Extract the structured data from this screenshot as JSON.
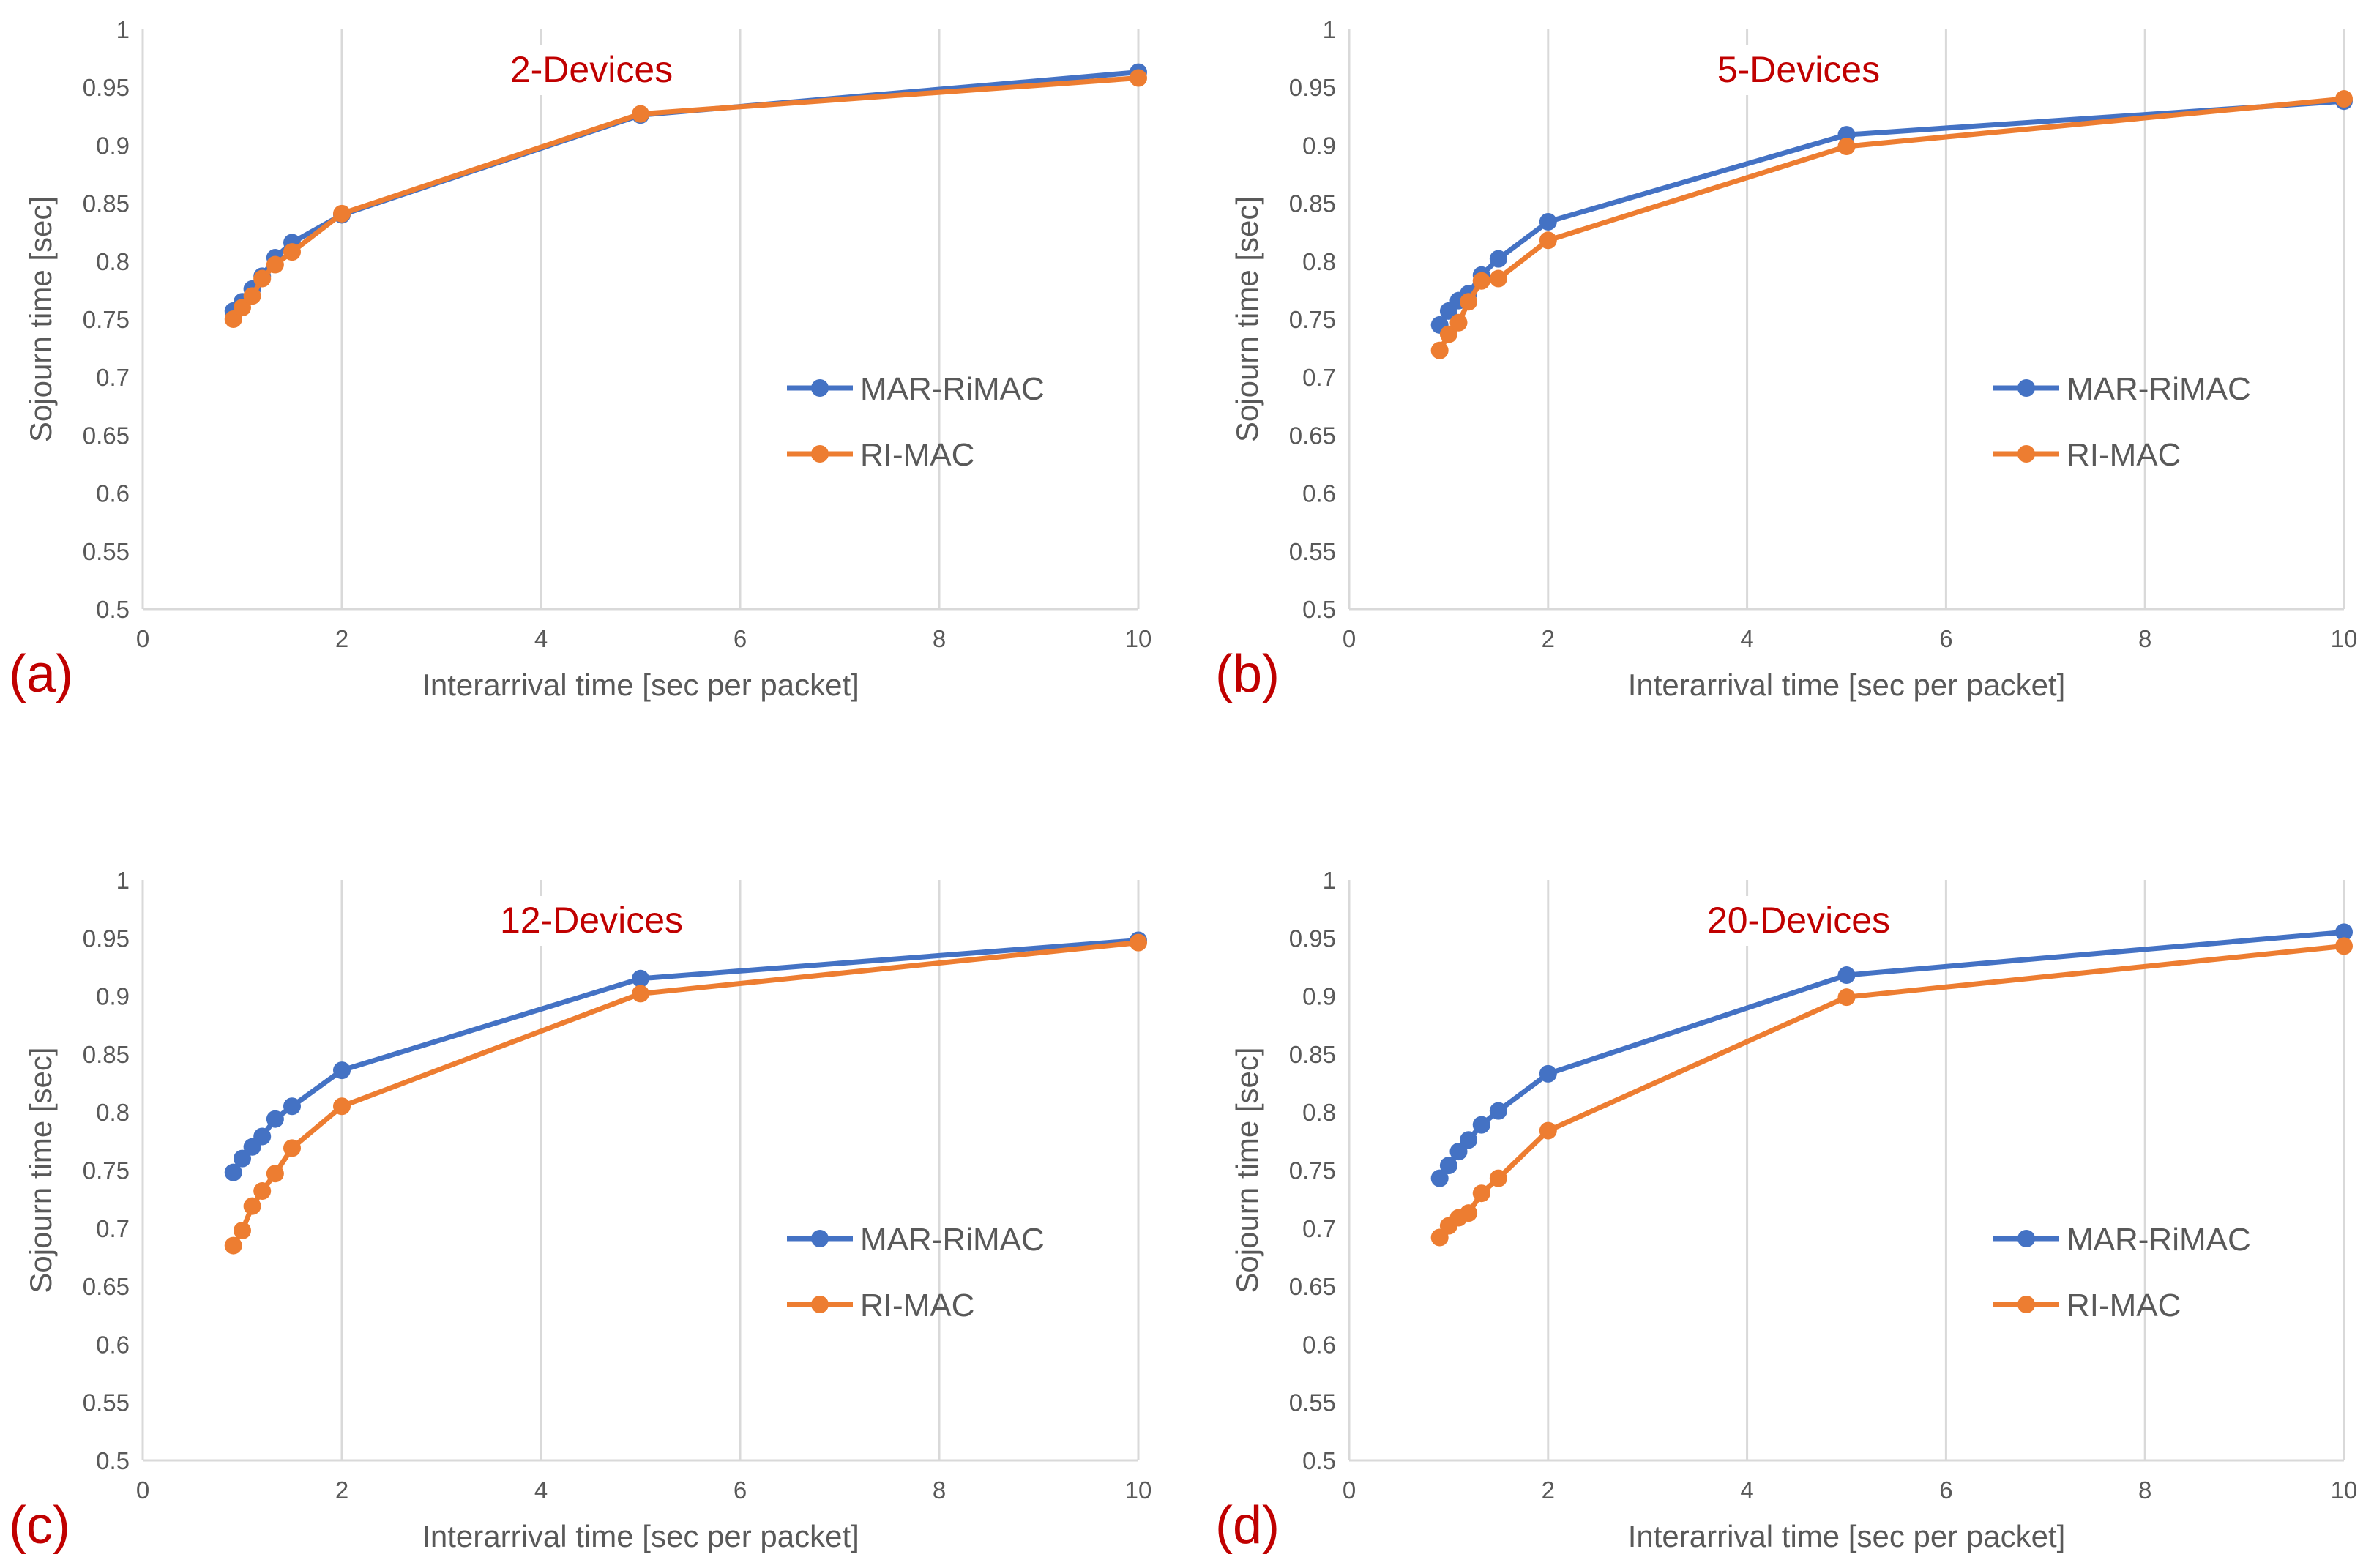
{
  "colors": {
    "mar_rimac": "#4472c4",
    "ri_mac": "#ed7d31",
    "grid": "#d9d9d9",
    "axis_text": "#595959",
    "title_red": "#c00000"
  },
  "chart_data": [
    {
      "type": "line",
      "panel": "(a)",
      "title": "2-Devices",
      "xlabel": "Interarrival time [sec per packet]",
      "ylabel": "Sojourn time [sec]",
      "xlim": [
        0,
        10
      ],
      "ylim": [
        0.5,
        1
      ],
      "xticks": [
        "0",
        "2",
        "4",
        "6",
        "8",
        "10"
      ],
      "yticks": [
        "0.5",
        "0.55",
        "0.6",
        "0.65",
        "0.7",
        "0.75",
        "0.8",
        "0.85",
        "0.9",
        "0.95",
        "1"
      ],
      "grid": "vertical",
      "legend_position": "right",
      "x": [
        0.91,
        1.0,
        1.1,
        1.2,
        1.33,
        1.5,
        2,
        5,
        10
      ],
      "series": [
        {
          "name": "MAR-RiMAC",
          "values": [
            0.757,
            0.765,
            0.776,
            0.787,
            0.803,
            0.816,
            0.84,
            0.926,
            0.963
          ]
        },
        {
          "name": "RI-MAC",
          "values": [
            0.75,
            0.76,
            0.77,
            0.785,
            0.797,
            0.808,
            0.841,
            0.927,
            0.958
          ]
        }
      ]
    },
    {
      "type": "line",
      "panel": "(b)",
      "title": "5-Devices",
      "xlabel": "Interarrival time [sec per packet]",
      "ylabel": "Sojourn time [sec]",
      "xlim": [
        0,
        10
      ],
      "ylim": [
        0.5,
        1
      ],
      "xticks": [
        "0",
        "2",
        "4",
        "6",
        "8",
        "10"
      ],
      "yticks": [
        "0.5",
        "0.55",
        "0.6",
        "0.65",
        "0.7",
        "0.75",
        "0.8",
        "0.85",
        "0.9",
        "0.95",
        "1"
      ],
      "grid": "vertical",
      "legend_position": "right",
      "x": [
        0.91,
        1.0,
        1.1,
        1.2,
        1.33,
        1.5,
        2,
        5,
        10
      ],
      "series": [
        {
          "name": "MAR-RiMAC",
          "values": [
            0.745,
            0.757,
            0.766,
            0.772,
            0.788,
            0.802,
            0.834,
            0.909,
            0.938
          ]
        },
        {
          "name": "RI-MAC",
          "values": [
            0.723,
            0.737,
            0.747,
            0.765,
            0.783,
            0.785,
            0.818,
            0.899,
            0.94
          ]
        }
      ]
    },
    {
      "type": "line",
      "panel": "(c)",
      "title": "12-Devices",
      "xlabel": "Interarrival time [sec per packet]",
      "ylabel": "Sojourn time [sec]",
      "xlim": [
        0,
        10
      ],
      "ylim": [
        0.5,
        1
      ],
      "xticks": [
        "0",
        "2",
        "4",
        "6",
        "8",
        "10"
      ],
      "yticks": [
        "0.5",
        "0.55",
        "0.6",
        "0.65",
        "0.7",
        "0.75",
        "0.8",
        "0.85",
        "0.9",
        "0.95",
        "1"
      ],
      "grid": "vertical",
      "legend_position": "right",
      "x": [
        0.91,
        1.0,
        1.1,
        1.2,
        1.33,
        1.5,
        2,
        5,
        10
      ],
      "series": [
        {
          "name": "MAR-RiMAC",
          "values": [
            0.748,
            0.76,
            0.77,
            0.779,
            0.794,
            0.805,
            0.836,
            0.915,
            0.948
          ]
        },
        {
          "name": "RI-MAC",
          "values": [
            0.685,
            0.698,
            0.719,
            0.732,
            0.747,
            0.769,
            0.805,
            0.902,
            0.946
          ]
        }
      ]
    },
    {
      "type": "line",
      "panel": "(d)",
      "title": "20-Devices",
      "xlabel": "Interarrival time [sec per packet]",
      "ylabel": "Sojourn time [sec]",
      "xlim": [
        0,
        10
      ],
      "ylim": [
        0.5,
        1
      ],
      "xticks": [
        "0",
        "2",
        "4",
        "6",
        "8",
        "10"
      ],
      "yticks": [
        "0.5",
        "0.55",
        "0.6",
        "0.65",
        "0.7",
        "0.75",
        "0.8",
        "0.85",
        "0.9",
        "0.95",
        "1"
      ],
      "grid": "vertical",
      "legend_position": "right",
      "x": [
        0.91,
        1.0,
        1.1,
        1.2,
        1.33,
        1.5,
        2,
        5,
        10
      ],
      "series": [
        {
          "name": "MAR-RiMAC",
          "values": [
            0.743,
            0.754,
            0.766,
            0.776,
            0.789,
            0.801,
            0.833,
            0.918,
            0.955
          ]
        },
        {
          "name": "RI-MAC",
          "values": [
            0.692,
            0.702,
            0.709,
            0.713,
            0.73,
            0.743,
            0.784,
            0.899,
            0.943
          ]
        }
      ]
    }
  ]
}
